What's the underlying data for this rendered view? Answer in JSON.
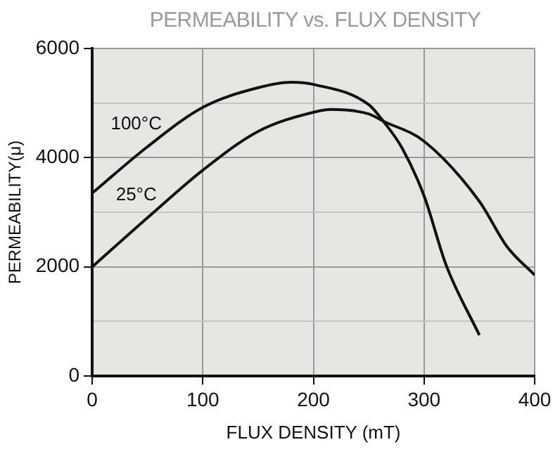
{
  "chart_data": {
    "type": "line",
    "title": "PERMEABILITY vs. FLUX DENSITY",
    "xlabel": "FLUX DENSITY (mT)",
    "ylabel": "PERMEABILITY(μ)",
    "xlim": [
      0,
      400
    ],
    "xticks": [
      0,
      100,
      200,
      300,
      400
    ],
    "ylim": [
      0,
      6000
    ],
    "yticks": [
      0,
      {
        "value": 1000,
        "label": null
      },
      2000,
      {
        "value": 3000,
        "label": null
      },
      4000,
      {
        "value": 5000,
        "label": null
      },
      6000
    ],
    "grid": true,
    "marker": "none",
    "line_style": "solid",
    "series": [
      {
        "name": "100°C",
        "color": "#111111",
        "x": [
          0,
          50,
          100,
          150,
          180,
          200,
          250,
          263,
          280,
          300,
          320,
          350
        ],
        "values": [
          3350,
          4200,
          4920,
          5280,
          5380,
          5340,
          4970,
          4670,
          4180,
          3300,
          2030,
          750
        ]
      },
      {
        "name": "25°C",
        "color": "#111111",
        "x": [
          0,
          50,
          100,
          150,
          200,
          216,
          250,
          263,
          300,
          350,
          375,
          400
        ],
        "values": [
          2000,
          2900,
          3770,
          4480,
          4830,
          4880,
          4800,
          4670,
          4300,
          3200,
          2370,
          1850
        ]
      }
    ]
  }
}
